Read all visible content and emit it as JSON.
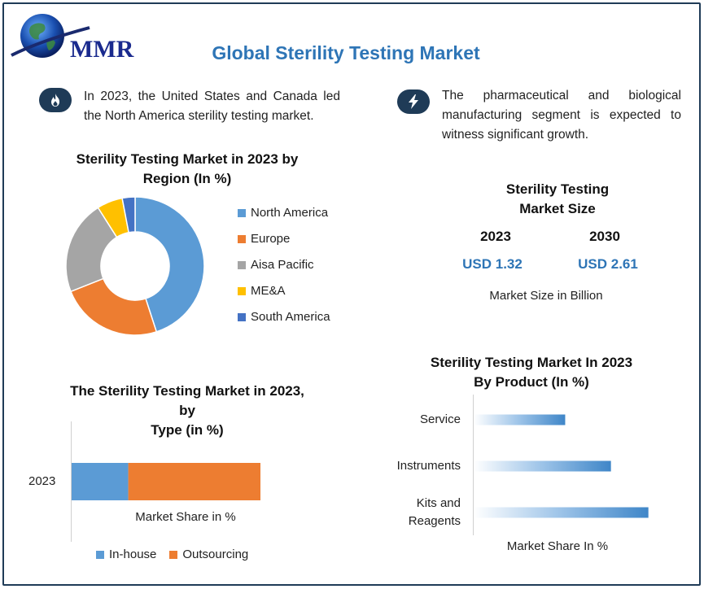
{
  "header": {
    "logo_text": "MMR",
    "title": "Global Sterility Testing Market"
  },
  "facts": [
    {
      "icon": "flame-icon",
      "text": "In 2023, the United States and Canada led the North America sterility testing market."
    },
    {
      "icon": "lightning-icon",
      "text": "The pharmaceutical and biological manufacturing segment is expected to witness significant growth."
    }
  ],
  "market_size": {
    "title_line1": "Sterility Testing",
    "title_line2": "Market Size",
    "years": [
      "2023",
      "2030"
    ],
    "values": [
      "USD 1.32",
      "USD 2.61"
    ],
    "caption": "Market Size in Billion"
  },
  "colors": {
    "north_america": "#5b9bd5",
    "europe": "#ed7d31",
    "asia_pacific": "#a5a5a5",
    "mea": "#ffc000",
    "south_america": "#4472c4",
    "accent": "#2e75b6",
    "dark": "#1f3b57"
  },
  "chart_data": [
    {
      "type": "pie",
      "title_line1": "Sterility Testing Market in 2023 by",
      "title_line2": "Region (In %)",
      "categories": [
        "North America",
        "Europe",
        "Aisa Pacific",
        "ME&A",
        "South America"
      ],
      "values": [
        45,
        24,
        22,
        6,
        3
      ],
      "legend_position": "right"
    },
    {
      "type": "bar",
      "orientation": "horizontal-stacked",
      "title_line1": "The Sterility Testing Market in 2023, by",
      "title_line2": "Type (in %)",
      "categories": [
        "2023"
      ],
      "series": [
        {
          "name": "In-house",
          "values": [
            30
          ]
        },
        {
          "name": "Outsourcing",
          "values": [
            70
          ]
        }
      ],
      "xlabel": "Market Share in %",
      "xlim": [
        0,
        100
      ],
      "legend_position": "bottom"
    },
    {
      "type": "bar",
      "orientation": "horizontal",
      "title_line1": "Sterility Testing Market In 2023",
      "title_line2": "By Product (In %)",
      "categories": [
        [
          "Service"
        ],
        [
          "Instruments"
        ],
        [
          "Kits and",
          "Reagents"
        ]
      ],
      "values": [
        22,
        33,
        42
      ],
      "xlabel": "Market Share In %",
      "xlim": [
        0,
        45
      ]
    }
  ]
}
